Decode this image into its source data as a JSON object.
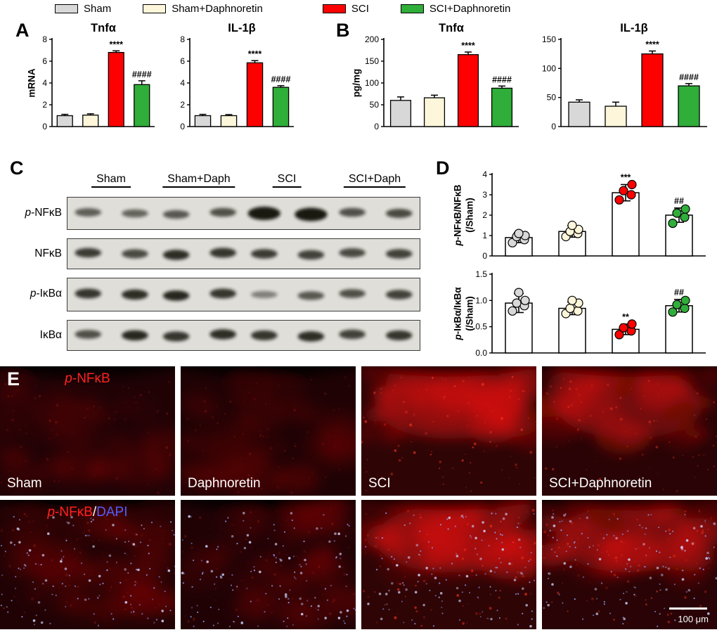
{
  "group_colors": [
    "#d8d8d8",
    "#fdf6da",
    "#ff0000",
    "#2fae39"
  ],
  "legend": {
    "items": [
      {
        "label": "Sham",
        "color": "#d8d8d8"
      },
      {
        "label": "Sham+Daphnoretin",
        "color": "#fdf6da"
      },
      {
        "label": "SCI",
        "color": "#ff0000"
      },
      {
        "label": "SCI+Daphnoretin",
        "color": "#2fae39"
      }
    ]
  },
  "chart_data": [
    {
      "panel": "A",
      "type": "bar",
      "title": "Tnfα",
      "ylabel": "mRNA",
      "ylim": [
        0,
        8
      ],
      "yticks": [
        0,
        2,
        4,
        6,
        8
      ],
      "ytick_labels": [
        "0",
        "2",
        "4",
        "6",
        "8"
      ],
      "categories": [
        "Sham",
        "Sham+Daphnoretin",
        "SCI",
        "SCI+Daphnoretin"
      ],
      "values": [
        1.0,
        1.05,
        6.8,
        3.85
      ],
      "errors": [
        0.12,
        0.12,
        0.15,
        0.35
      ],
      "annotations": [
        "",
        "",
        "****",
        "####"
      ]
    },
    {
      "panel": "A",
      "type": "bar",
      "title": "IL-1β",
      "ylabel": "",
      "ylim": [
        0,
        8
      ],
      "yticks": [
        0,
        2,
        4,
        6,
        8
      ],
      "ytick_labels": [
        "0",
        "2",
        "4",
        "6",
        "8"
      ],
      "categories": [
        "Sham",
        "Sham+Daphnoretin",
        "SCI",
        "SCI+Daphnoretin"
      ],
      "values": [
        1.0,
        1.0,
        5.85,
        3.6
      ],
      "errors": [
        0.12,
        0.1,
        0.2,
        0.15
      ],
      "annotations": [
        "",
        "",
        "****",
        "####"
      ]
    },
    {
      "panel": "B",
      "type": "bar",
      "title": "Tnfα",
      "ylabel": "pg/mg",
      "ylim": [
        0,
        200
      ],
      "yticks": [
        0,
        50,
        100,
        150,
        200
      ],
      "ytick_labels": [
        "0",
        "50",
        "100",
        "150",
        "200"
      ],
      "categories": [
        "Sham",
        "Sham+Daphnoretin",
        "SCI",
        "SCI+Daphnoretin"
      ],
      "values": [
        60,
        66,
        165,
        88
      ],
      "errors": [
        8,
        6,
        6,
        5
      ],
      "annotations": [
        "",
        "",
        "****",
        "####"
      ]
    },
    {
      "panel": "B",
      "type": "bar",
      "title": "IL-1β",
      "ylabel": "",
      "ylim": [
        0,
        150
      ],
      "yticks": [
        0,
        50,
        100,
        150
      ],
      "ytick_labels": [
        "0",
        "50",
        "100",
        "150"
      ],
      "categories": [
        "Sham",
        "Sham+Daphnoretin",
        "SCI",
        "SCI+Daphnoretin"
      ],
      "values": [
        42,
        35,
        125,
        70
      ],
      "errors": [
        4,
        7,
        5,
        4
      ],
      "annotations": [
        "",
        "",
        "****",
        "####"
      ]
    },
    {
      "panel": "D",
      "type": "scatter",
      "title": "",
      "ylabel_lines": [
        "p-NFκB/NFκB",
        "(/Sham)"
      ],
      "ylim": [
        0,
        4
      ],
      "yticks": [
        0,
        1,
        2,
        3,
        4
      ],
      "ytick_labels": [
        "0",
        "1",
        "2",
        "3",
        "4"
      ],
      "categories": [
        "Sham",
        "Sham+Daphnoretin",
        "SCI",
        "SCI+Daphnoretin"
      ],
      "means": [
        0.9,
        1.2,
        3.1,
        2.0
      ],
      "sd": [
        0.25,
        0.28,
        0.4,
        0.35
      ],
      "points": [
        [
          0.65,
          0.8,
          0.95,
          1.0,
          1.1
        ],
        [
          0.95,
          1.1,
          1.2,
          1.3,
          1.5
        ],
        [
          2.75,
          3.0,
          3.2,
          3.5
        ],
        [
          1.6,
          1.9,
          2.1,
          2.3
        ]
      ],
      "annotations": [
        "",
        "",
        "***",
        "##"
      ]
    },
    {
      "panel": "D",
      "type": "scatter",
      "title": "",
      "ylabel_lines": [
        "p-IκBα/IκBα",
        "(/Sham)"
      ],
      "ylim": [
        0,
        1.5
      ],
      "yticks": [
        0,
        0.5,
        1,
        1.5
      ],
      "ytick_labels": [
        "0.0",
        "0.5",
        "1.0",
        "1.5"
      ],
      "categories": [
        "Sham",
        "Sham+Daphnoretin",
        "SCI",
        "SCI+Daphnoretin"
      ],
      "means": [
        0.95,
        0.85,
        0.45,
        0.9
      ],
      "sd": [
        0.18,
        0.12,
        0.1,
        0.12
      ],
      "points": [
        [
          0.8,
          0.9,
          0.95,
          1.0,
          1.15
        ],
        [
          0.75,
          0.8,
          0.85,
          0.95,
          1.0
        ],
        [
          0.35,
          0.42,
          0.48,
          0.55
        ],
        [
          0.78,
          0.85,
          0.92,
          1.0
        ]
      ],
      "annotations": [
        "",
        "",
        "**",
        "##"
      ]
    }
  ],
  "panel_a": {
    "label": "A"
  },
  "panel_b": {
    "label": "B"
  },
  "panel_c": {
    "label": "C",
    "groups": [
      "Sham",
      "Sham+Daph",
      "SCI",
      "SCI+Daph"
    ],
    "rows": [
      {
        "label": "p-NFκB",
        "bands": [
          0.5,
          0.45,
          0.55,
          0.6,
          1.0,
          1.0,
          0.6,
          0.65
        ]
      },
      {
        "label": "NFκB",
        "bands": [
          0.75,
          0.65,
          0.85,
          0.8,
          0.75,
          0.7,
          0.65,
          0.7
        ]
      },
      {
        "label": "p-IκBα",
        "bands": [
          0.8,
          0.85,
          0.9,
          0.8,
          0.25,
          0.55,
          0.6,
          0.7
        ]
      },
      {
        "label": "IκBα",
        "bands": [
          0.6,
          0.9,
          0.8,
          0.85,
          0.8,
          0.85,
          0.7,
          0.8
        ]
      }
    ]
  },
  "panel_d": {
    "label": "D"
  },
  "panel_e": {
    "label": "E",
    "row1": {
      "title": "p-NFκB",
      "images": [
        {
          "label": "Sham",
          "intensity": 0.3,
          "top": false,
          "dapi": false
        },
        {
          "label": "Daphnoretin",
          "intensity": 0.26,
          "top": false,
          "dapi": false
        },
        {
          "label": "SCI",
          "intensity": 0.95,
          "top": true,
          "dapi": false
        },
        {
          "label": "SCI+Daphnoretin",
          "intensity": 0.72,
          "top": true,
          "dapi": false
        }
      ]
    },
    "row2": {
      "title_red": "p-NFκB",
      "title_sep": "/",
      "title_blue": "DAPI",
      "scalebar": "100 μm",
      "images": [
        {
          "intensity": 0.34,
          "top": false,
          "dapi": true
        },
        {
          "intensity": 0.3,
          "top": false,
          "dapi": true
        },
        {
          "intensity": 0.95,
          "top": true,
          "dapi": true
        },
        {
          "intensity": 0.75,
          "top": true,
          "dapi": true
        }
      ]
    }
  }
}
